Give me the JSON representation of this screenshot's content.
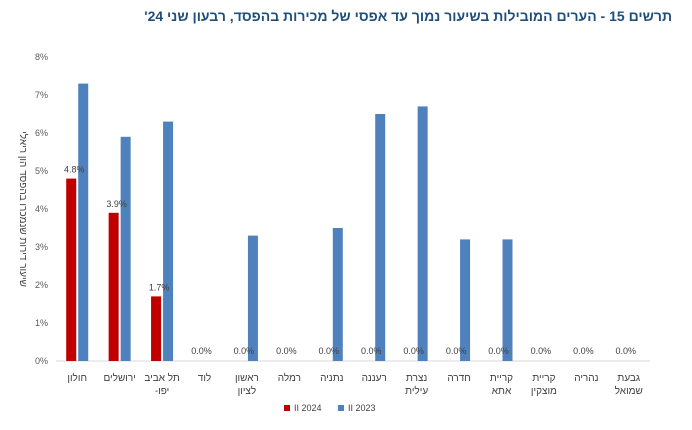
{
  "chart_data": {
    "type": "bar",
    "title": "תרשים 15 - הערים המובילות בשיעור נמוך עד אפסי של מכירות בהפסד, רבעון שני 24'",
    "ylabel": "שיעור דירות שנמכרו בהפסד הון ריאלי",
    "xlabel": "",
    "ylim": [
      0,
      8
    ],
    "yticks": [
      "0%",
      "1%",
      "2%",
      "3%",
      "4%",
      "5%",
      "6%",
      "7%",
      "8%"
    ],
    "grid": false,
    "legend_position": "bottom",
    "categories": [
      [
        "חולון"
      ],
      [
        "ירושלים"
      ],
      [
        "תל אביב",
        "-יפו"
      ],
      [
        "לוד"
      ],
      [
        "ראשון",
        "לציון"
      ],
      [
        "רמלה"
      ],
      [
        "נתניה"
      ],
      [
        "רעננה"
      ],
      [
        "נצרת",
        "עילית"
      ],
      [
        "חדרה"
      ],
      [
        "קריית",
        "אתא"
      ],
      [
        "קריית",
        "מוצקין"
      ],
      [
        "נהריה"
      ],
      [
        "גבעת",
        "שמואל"
      ]
    ],
    "series": [
      {
        "name": "II 2024",
        "color": "#c00000",
        "values": [
          4.8,
          3.9,
          1.7,
          0,
          0,
          0,
          0,
          0,
          0,
          0,
          0,
          0,
          0,
          0
        ],
        "labels": [
          "4.8%",
          "3.9%",
          "1.7%",
          "0.0%",
          "0.0%",
          "0.0%",
          "0.0%",
          "0.0%",
          "0.0%",
          "0.0%",
          "0.0%",
          "0.0%",
          "0.0%",
          "0.0%"
        ]
      },
      {
        "name": "II 2023",
        "color": "#4f81bd",
        "values": [
          7.3,
          5.9,
          6.3,
          0,
          3.3,
          0,
          3.5,
          6.5,
          6.7,
          3.2,
          3.2,
          0,
          0,
          0
        ]
      }
    ]
  }
}
